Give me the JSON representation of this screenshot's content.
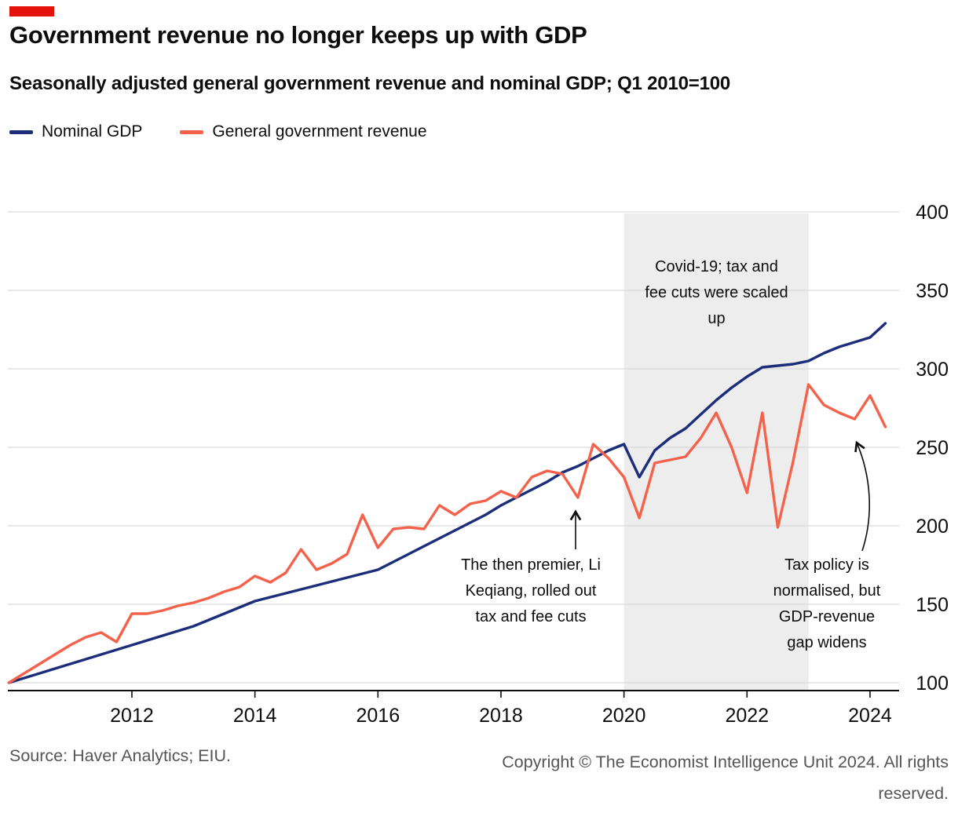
{
  "brand": {
    "accent_color": "#e3120b"
  },
  "header": {
    "title": "Government revenue no longer keeps up with GDP",
    "subtitle": "Seasonally adjusted general government revenue and nominal GDP; Q1 2010=100"
  },
  "legend": {
    "items": [
      {
        "label": "Nominal GDP",
        "color": "#1c2d7a"
      },
      {
        "label": "General government revenue",
        "color": "#f4624c"
      }
    ]
  },
  "chart_data": {
    "type": "line",
    "title": "Government revenue no longer keeps up with GDP",
    "subtitle": "Seasonally adjusted general government revenue and nominal GDP; Q1 2010=100",
    "x_unit": "year, quarterly observations",
    "x_start": 2010.0,
    "x_step": 0.25,
    "xlim": [
      2010,
      2024.6
    ],
    "ylim": [
      95,
      400
    ],
    "x_ticks": [
      2012,
      2014,
      2016,
      2018,
      2020,
      2022,
      2024
    ],
    "y_ticks": [
      100,
      150,
      200,
      250,
      300,
      350,
      400
    ],
    "grid": "horizontal",
    "legend_position": "top-left",
    "axis_label_side": "right",
    "shaded_region": {
      "x_from": 2020.0,
      "x_to": 2023.0,
      "color": "#ededed"
    },
    "series": [
      {
        "name": "Nominal GDP",
        "color": "#1c2d7a",
        "values": [
          100,
          103,
          106,
          109,
          112,
          115,
          118,
          121,
          124,
          127,
          130,
          133,
          136,
          140,
          144,
          148,
          152,
          154.5,
          157,
          159.5,
          162,
          164.5,
          167,
          169.5,
          172,
          177,
          182,
          187,
          192,
          197,
          202,
          207,
          213,
          218,
          223,
          228,
          234,
          238,
          243,
          248,
          252,
          231,
          248,
          256,
          262,
          271,
          280,
          288,
          295,
          301,
          302,
          303,
          305,
          310,
          314,
          317,
          320,
          329
        ]
      },
      {
        "name": "General government revenue",
        "color": "#f4624c",
        "values": [
          100,
          106,
          112,
          118,
          124,
          129,
          132,
          126,
          144,
          144,
          146,
          149,
          151,
          154,
          158,
          161,
          168,
          164,
          170,
          185,
          172,
          176,
          182,
          207,
          186,
          198,
          199,
          198,
          213,
          207,
          214,
          216,
          222,
          218,
          231,
          235,
          233,
          218,
          252,
          243,
          231,
          205,
          240,
          242,
          244,
          256,
          272,
          250,
          221,
          272,
          199,
          241,
          290,
          277,
          272,
          268,
          283,
          263
        ]
      }
    ],
    "annotations": [
      {
        "text": "Covid-19; tax and fee cuts were scaled up",
        "x": 2021.5,
        "y": 372,
        "arrow": "none"
      },
      {
        "text": "The then premier, Li Keqiang, rolled out tax and fee cuts",
        "x": 2019.25,
        "y": 195,
        "arrow": "straight-up"
      },
      {
        "text": "Tax policy is normalised, but GDP-revenue gap widens",
        "x": 2023.3,
        "y": 195,
        "arrow": "curved-up"
      }
    ]
  },
  "footer": {
    "source": "Source: Haver Analytics; EIU.",
    "copyright": "Copyright © The Economist Intelligence Unit 2024. All rights reserved."
  },
  "colors": {
    "brand_red": "#e3120b",
    "gdp_line": "#1c2d7a",
    "revenue_line": "#f4624c",
    "shaded_band": "#ededed",
    "grid": "#d9d9d9",
    "axis": "#0d0d0d",
    "footer_text": "#555555"
  }
}
